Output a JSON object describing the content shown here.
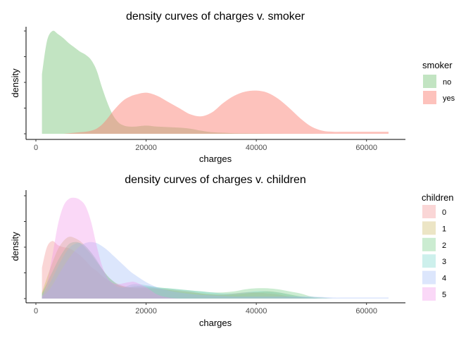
{
  "chart_data": [
    {
      "type": "area",
      "title": "density curves of charges v. smoker",
      "xlabel": "charges",
      "ylabel": "density",
      "xlim": [
        0,
        64000
      ],
      "xticks": [
        0,
        20000,
        40000,
        60000
      ],
      "xtick_labels": [
        "0",
        "20000",
        "40000",
        "60000"
      ],
      "ylim": [
        0,
        1
      ],
      "ytick_count": 5,
      "y_tick_labels_shown": false,
      "grid": false,
      "legend": {
        "title": "smoker",
        "position": "right"
      },
      "x": [
        1100,
        2000,
        3000,
        4000,
        5000,
        6000,
        7000,
        8000,
        9000,
        10000,
        11000,
        12000,
        13000,
        14000,
        15000,
        16000,
        17000,
        18000,
        20000,
        22000,
        24000,
        26000,
        28000,
        30000,
        32000,
        34000,
        36000,
        38000,
        40000,
        42000,
        44000,
        46000,
        48000,
        50000,
        52000,
        54000,
        56000,
        58000,
        60000,
        62000,
        64000
      ],
      "series": [
        {
          "name": "no",
          "color": "#7fc77f",
          "values": [
            0.58,
            0.9,
            1.0,
            0.97,
            0.93,
            0.88,
            0.84,
            0.8,
            0.77,
            0.72,
            0.62,
            0.45,
            0.3,
            0.18,
            0.11,
            0.08,
            0.07,
            0.07,
            0.08,
            0.07,
            0.065,
            0.06,
            0.05,
            0.03,
            0.015,
            0.01,
            0.005,
            0.004,
            0.003,
            0.002,
            0.002,
            0.001,
            0.001,
            0.001,
            0.0,
            0.0,
            0.0,
            0.0,
            0.0,
            0.0,
            0.0
          ]
        },
        {
          "name": "yes",
          "color": "#fb8072",
          "values": [
            0.0,
            0.0,
            0.0,
            0.0,
            0.0,
            0.005,
            0.01,
            0.015,
            0.02,
            0.03,
            0.05,
            0.09,
            0.15,
            0.22,
            0.28,
            0.33,
            0.36,
            0.38,
            0.4,
            0.37,
            0.31,
            0.25,
            0.19,
            0.17,
            0.21,
            0.3,
            0.37,
            0.41,
            0.42,
            0.4,
            0.34,
            0.25,
            0.15,
            0.07,
            0.03,
            0.02,
            0.02,
            0.02,
            0.02,
            0.02,
            0.02
          ]
        }
      ]
    },
    {
      "type": "area",
      "title": "density curves of charges v. children",
      "xlabel": "charges",
      "ylabel": "density",
      "xlim": [
        0,
        64000
      ],
      "xticks": [
        0,
        20000,
        40000,
        60000
      ],
      "xtick_labels": [
        "0",
        "20000",
        "40000",
        "60000"
      ],
      "ylim": [
        0,
        1
      ],
      "ytick_count": 5,
      "y_tick_labels_shown": false,
      "grid": false,
      "legend": {
        "title": "children",
        "position": "right"
      },
      "x": [
        1100,
        2000,
        3000,
        4000,
        5000,
        6000,
        7000,
        8000,
        9000,
        10000,
        11000,
        12000,
        13000,
        14000,
        15000,
        16000,
        17000,
        18000,
        20000,
        22000,
        24000,
        26000,
        28000,
        30000,
        32000,
        34000,
        36000,
        38000,
        40000,
        42000,
        44000,
        46000,
        48000,
        50000,
        52000,
        54000,
        56000,
        58000,
        60000,
        62000,
        64000
      ],
      "series": [
        {
          "name": "0",
          "color": "#f08a8a",
          "values": [
            0.3,
            0.5,
            0.56,
            0.52,
            0.5,
            0.49,
            0.46,
            0.42,
            0.37,
            0.31,
            0.27,
            0.22,
            0.18,
            0.15,
            0.13,
            0.12,
            0.11,
            0.11,
            0.11,
            0.1,
            0.09,
            0.08,
            0.07,
            0.05,
            0.04,
            0.04,
            0.05,
            0.06,
            0.06,
            0.05,
            0.04,
            0.02,
            0.01,
            0.0,
            0.0,
            0.0,
            0.0,
            0.0,
            0.0,
            0.0,
            0.0
          ]
        },
        {
          "name": "1",
          "color": "#c8b45a",
          "values": [
            0.06,
            0.2,
            0.35,
            0.48,
            0.56,
            0.6,
            0.59,
            0.56,
            0.51,
            0.45,
            0.37,
            0.29,
            0.22,
            0.17,
            0.14,
            0.12,
            0.11,
            0.1,
            0.1,
            0.095,
            0.085,
            0.07,
            0.06,
            0.05,
            0.04,
            0.035,
            0.04,
            0.05,
            0.06,
            0.07,
            0.06,
            0.04,
            0.02,
            0.01,
            0.0,
            0.0,
            0.0,
            0.0,
            0.0,
            0.0,
            0.0
          ]
        },
        {
          "name": "2",
          "color": "#6bc97a",
          "values": [
            0.05,
            0.15,
            0.26,
            0.37,
            0.46,
            0.53,
            0.55,
            0.54,
            0.49,
            0.43,
            0.36,
            0.29,
            0.22,
            0.17,
            0.13,
            0.11,
            0.11,
            0.12,
            0.12,
            0.11,
            0.1,
            0.09,
            0.08,
            0.07,
            0.06,
            0.06,
            0.07,
            0.09,
            0.1,
            0.1,
            0.09,
            0.07,
            0.05,
            0.02,
            0.01,
            0.0,
            0.0,
            0.0,
            0.0,
            0.0,
            0.0
          ]
        },
        {
          "name": "3",
          "color": "#6fd3c8",
          "values": [
            0.04,
            0.1,
            0.2,
            0.31,
            0.41,
            0.49,
            0.53,
            0.54,
            0.51,
            0.45,
            0.38,
            0.29,
            0.2,
            0.14,
            0.11,
            0.11,
            0.13,
            0.14,
            0.13,
            0.11,
            0.1,
            0.09,
            0.08,
            0.07,
            0.06,
            0.05,
            0.05,
            0.06,
            0.07,
            0.07,
            0.06,
            0.04,
            0.02,
            0.01,
            0.0,
            0.0,
            0.0,
            0.0,
            0.0,
            0.0,
            0.0
          ]
        },
        {
          "name": "4",
          "color": "#9ab8f5",
          "values": [
            0.02,
            0.06,
            0.13,
            0.22,
            0.31,
            0.39,
            0.46,
            0.51,
            0.54,
            0.55,
            0.54,
            0.51,
            0.47,
            0.42,
            0.37,
            0.32,
            0.27,
            0.23,
            0.16,
            0.11,
            0.08,
            0.06,
            0.045,
            0.035,
            0.03,
            0.025,
            0.02,
            0.02,
            0.02,
            0.02,
            0.02,
            0.02,
            0.02,
            0.02,
            0.015,
            0.01,
            0.01,
            0.01,
            0.01,
            0.01,
            0.01
          ]
        },
        {
          "name": "5",
          "color": "#f28ee8",
          "values": [
            0.02,
            0.15,
            0.42,
            0.72,
            0.9,
            0.97,
            0.98,
            0.96,
            0.9,
            0.75,
            0.52,
            0.32,
            0.2,
            0.15,
            0.14,
            0.15,
            0.16,
            0.16,
            0.11,
            0.04,
            0.01,
            0.0,
            0.0,
            0.0,
            0.0,
            0.0,
            0.0,
            0.0,
            0.0,
            0.0,
            0.0,
            0.0,
            0.0,
            0.0,
            0.0,
            0.0,
            0.0,
            0.0,
            0.0,
            0.0,
            0.0
          ]
        }
      ]
    }
  ]
}
